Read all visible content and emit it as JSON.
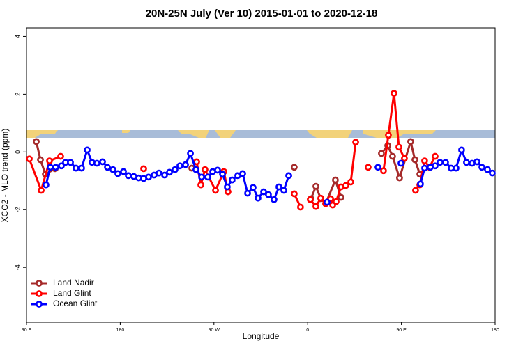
{
  "chart_data": {
    "type": "line",
    "title": "20N-25N July (Ver 10)   2015-01-01 to 2020-12-18",
    "x_label": "Longitude",
    "y_label": "XCO2 - MLO trend (ppm)",
    "xlim": [
      90,
      540
    ],
    "ylim": [
      -5.9,
      4.3
    ],
    "xticks": [
      {
        "value": 90,
        "label": "90 E"
      },
      180,
      {
        "value": 270,
        "label": "90 W"
      },
      {
        "value": 360,
        "label": "0"
      },
      {
        "value": 450,
        "label": "90 E"
      },
      {
        "value": 540,
        "label": "180"
      }
    ],
    "yticks": [
      -4,
      -2,
      0,
      2,
      4
    ],
    "legend": "bottomleft",
    "series": [
      {
        "name": "Land Nadir",
        "color": "#a52a2a",
        "x": [
          99.4,
          103.4,
          108.1,
          117.5,
          null,
          248.7,
          null,
          347.1,
          null,
          363.2,
          367.9,
          372.6,
          377.3,
          386.6,
          392.0,
          null,
          430.8,
          436.9,
          441.5,
          448.2,
          458.9,
          463.0,
          467.7
        ],
        "values": [
          0.36,
          -0.27,
          -0.77,
          -0.58,
          null,
          -0.56,
          null,
          -0.53,
          null,
          -1.62,
          -1.19,
          -1.62,
          -1.79,
          -0.97,
          -1.57,
          null,
          -0.05,
          0.22,
          -0.15,
          -0.9,
          0.36,
          -0.27,
          -0.77
        ]
      },
      {
        "name": "Land Glint",
        "color": "#ff0000",
        "x": [
          92.7,
          104.1,
          112.1,
          122.8,
          null,
          202.5,
          null,
          253.4,
          257.4,
          261.4,
          271.5,
          279.5,
          283.5,
          null,
          347.1,
          353.1,
          null,
          362.5,
          367.9,
          372.6,
          377.3,
          382.0,
          384.0,
          387.3,
          392.0,
          396.7,
          401.4,
          406.1,
          null,
          418.1,
          null,
          432.8,
          437.5,
          442.9,
          447.6,
          452.9,
          null,
          463.6,
          467.7,
          472.3,
          477.0,
          482.4
        ],
        "values": [
          -0.24,
          -1.33,
          -0.31,
          -0.15,
          null,
          -0.58,
          null,
          -0.34,
          -1.14,
          -0.61,
          -1.33,
          -0.68,
          -1.38,
          null,
          -1.45,
          -1.91,
          null,
          -1.65,
          -1.89,
          -1.6,
          -1.79,
          -1.62,
          -1.84,
          -1.72,
          -1.21,
          -1.16,
          -1.04,
          0.34,
          null,
          -0.53,
          null,
          -0.65,
          0.58,
          2.03,
          0.17,
          -0.22,
          null,
          -1.33,
          -1.14,
          -0.31,
          -0.53,
          -0.15
        ]
      },
      {
        "name": "Ocean Glint",
        "color": "#0000ff",
        "x": [
          108.7,
          112.8,
          118.1,
          123.5,
          127.5,
          132.2,
          137.5,
          142.9,
          148.3,
          152.9,
          157.6,
          163.0,
          167.7,
          173.0,
          177.7,
          183.1,
          187.8,
          193.1,
          197.8,
          202.5,
          207.2,
          212.5,
          217.2,
          222.6,
          227.3,
          232.6,
          237.3,
          242.7,
          247.4,
          252.7,
          258.1,
          264.1,
          268.8,
          273.5,
          278.2,
          282.8,
          287.5,
          292.9,
          297.6,
          302.3,
          307.6,
          312.3,
          317.7,
          322.3,
          327.7,
          332.4,
          337.1,
          341.8,
          null,
          378.6,
          null,
          427.5,
          null,
          449.6,
          null,
          468.3,
          472.3,
          477.7,
          482.4,
          487.1,
          492.4,
          497.8,
          502.5,
          507.8,
          512.5,
          517.9,
          522.6,
          527.3,
          532.6,
          537.3
        ],
        "values": [
          -1.14,
          -0.53,
          -0.53,
          -0.48,
          -0.36,
          -0.36,
          -0.56,
          -0.56,
          0.07,
          -0.36,
          -0.39,
          -0.34,
          -0.53,
          -0.61,
          -0.75,
          -0.68,
          -0.82,
          -0.85,
          -0.9,
          -0.92,
          -0.87,
          -0.8,
          -0.73,
          -0.8,
          -0.7,
          -0.61,
          -0.48,
          -0.44,
          -0.05,
          -0.61,
          -0.87,
          -0.87,
          -0.68,
          -0.63,
          -0.77,
          -1.21,
          -0.97,
          -0.82,
          -0.75,
          -1.43,
          -1.23,
          -1.6,
          -1.38,
          -1.48,
          -1.65,
          -1.21,
          -1.33,
          -0.82,
          null,
          -1.74,
          null,
          -0.53,
          null,
          -0.39,
          null,
          -1.11,
          -0.56,
          -0.53,
          -0.48,
          -0.36,
          -0.36,
          -0.56,
          -0.56,
          0.07,
          -0.36,
          -0.39,
          -0.34,
          -0.53,
          -0.61,
          -0.73
        ]
      }
    ]
  }
}
